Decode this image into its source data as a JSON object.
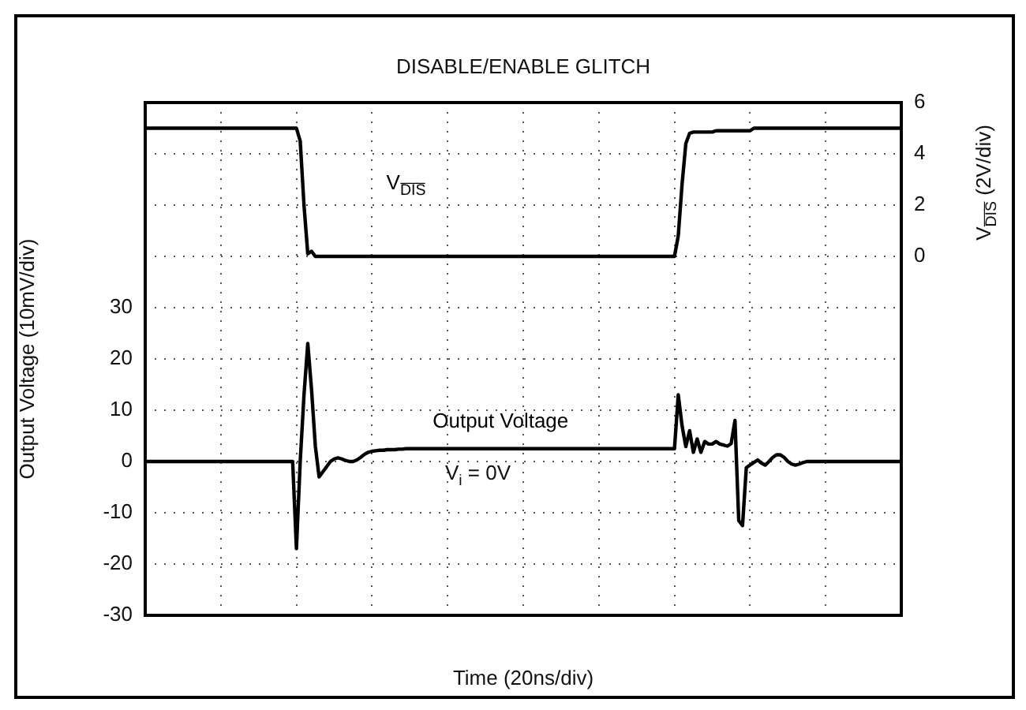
{
  "chart_data": {
    "type": "line",
    "title": "DISABLE/ENABLE GLITCH",
    "xlabel": "Time (20ns/div)",
    "ylabel": "Output Voltage (10mV/div)",
    "y2label": "V$_{D̅I̅S̅}$ (2V/div)",
    "annotations": [
      "V$_{i}$ = 0V"
    ],
    "categories": [
      null,
      null,
      null,
      null,
      null,
      null,
      null,
      null,
      null,
      null,
      null,
      null,
      null,
      null,
      null,
      null,
      null,
      null,
      null,
      null,
      null,
      null,
      null,
      null,
      null,
      null,
      null,
      null,
      null,
      null,
      null,
      null,
      null,
      null,
      null,
      null,
      null,
      null,
      null,
      null,
      null,
      null,
      null,
      null,
      null,
      null,
      null,
      null,
      null,
      null,
      null,
      null,
      null,
      null,
      null,
      null,
      null,
      null,
      null,
      null,
      null,
      null,
      null,
      null,
      null,
      null,
      null,
      null,
      null,
      null,
      null,
      null,
      null,
      null,
      null,
      null,
      null,
      null,
      null,
      null,
      null,
      null,
      null,
      null,
      null,
      null,
      null,
      null,
      null,
      null,
      null,
      null,
      null,
      null,
      null,
      null,
      null,
      null,
      null,
      null,
      null,
      null,
      null,
      null,
      null,
      null,
      null,
      null,
      null,
      null,
      null,
      null,
      null,
      null,
      null,
      null,
      null,
      null,
      null,
      null,
      null,
      null,
      null,
      null,
      null,
      null,
      null,
      null,
      null,
      null,
      null,
      null,
      null,
      null,
      null,
      null,
      null,
      null,
      null,
      null,
      null,
      null,
      null,
      null,
      null,
      null,
      null,
      null,
      null,
      null,
      null,
      null,
      null,
      null,
      null,
      null,
      null,
      null,
      null,
      null,
      null,
      null,
      null,
      null,
      null,
      null,
      null,
      null,
      null,
      null,
      null,
      null,
      null,
      null,
      null,
      null,
      null,
      null,
      null,
      null,
      null,
      null,
      null,
      null,
      null,
      null,
      null,
      null,
      null,
      null,
      null,
      null,
      null,
      null,
      null,
      null,
      null,
      null,
      null,
      null,
      null
    ],
    "series": [
      {
        "name": "V$_{D̅I̅S̅}$",
        "color": "#000000",
        "axis": "y2",
        "values": [
          5,
          5,
          5,
          5,
          5,
          5,
          5,
          5,
          5,
          5,
          5,
          5,
          5,
          5,
          5,
          5,
          5,
          5,
          5,
          5,
          5,
          5,
          5,
          5,
          5,
          5,
          5,
          5,
          5,
          5,
          5,
          5,
          5,
          5,
          5,
          5,
          5,
          5,
          5,
          5,
          5,
          4.5,
          2,
          0.1,
          0.2,
          0,
          0,
          0,
          0,
          0,
          0,
          0,
          0,
          0,
          0,
          0,
          0,
          0,
          0,
          0,
          0,
          0,
          0,
          0,
          0,
          0,
          0,
          0,
          0,
          0,
          0,
          0,
          0,
          0,
          0,
          0,
          0,
          0,
          0,
          0,
          0,
          0,
          0,
          0,
          0,
          0,
          0,
          0,
          0,
          0,
          0,
          0,
          0,
          0,
          0,
          0,
          0,
          0,
          0,
          0,
          0,
          0,
          0,
          0,
          0,
          0,
          0,
          0,
          0,
          0,
          0,
          0,
          0,
          0,
          0,
          0,
          0,
          0,
          0,
          0,
          0,
          0,
          0,
          0,
          0,
          0,
          0,
          0,
          0,
          0,
          0,
          0,
          0,
          0,
          0,
          0,
          0,
          0,
          0,
          0,
          0,
          0.8,
          2.8,
          4.4,
          4.8,
          4.85,
          4.85,
          4.85,
          4.85,
          4.85,
          4.85,
          4.9,
          4.9,
          4.9,
          4.9,
          4.9,
          4.9,
          4.9,
          4.9,
          4.9,
          4.9,
          5,
          5,
          5,
          5,
          5,
          5,
          5,
          5,
          5,
          5,
          5,
          5,
          5,
          5,
          5,
          5,
          5,
          5,
          5,
          5,
          5,
          5,
          5,
          5,
          5,
          5,
          5,
          5,
          5,
          5,
          5,
          5,
          5,
          5,
          5,
          5,
          5,
          5,
          5,
          5
        ]
      },
      {
        "name": "Output Voltage",
        "color": "#000000",
        "values": [
          0,
          0,
          0,
          0,
          0,
          0,
          0,
          0,
          0,
          0,
          0,
          0,
          0,
          0,
          0,
          0,
          0,
          0,
          0,
          0,
          0,
          0,
          0,
          0,
          0,
          0,
          0,
          0,
          0,
          0,
          0,
          0,
          0,
          0,
          0,
          0,
          0,
          0,
          0,
          0,
          -17,
          0,
          13,
          23,
          14,
          3,
          -3,
          -2,
          -1,
          0,
          0.5,
          0.7,
          0.5,
          0.2,
          0,
          0,
          0.3,
          0.8,
          1.4,
          1.8,
          2,
          2.1,
          2.2,
          2.2,
          2.3,
          2.3,
          2.3,
          2.4,
          2.4,
          2.5,
          2.5,
          2.5,
          2.5,
          2.5,
          2.5,
          2.5,
          2.5,
          2.5,
          2.5,
          2.5,
          2.5,
          2.5,
          2.5,
          2.5,
          2.5,
          2.5,
          2.5,
          2.5,
          2.5,
          2.5,
          2.5,
          2.5,
          2.5,
          2.5,
          2.5,
          2.5,
          2.5,
          2.5,
          2.5,
          2.5,
          2.5,
          2.5,
          2.5,
          2.5,
          2.5,
          2.5,
          2.5,
          2.5,
          2.5,
          2.5,
          2.5,
          2.5,
          2.5,
          2.5,
          2.5,
          2.5,
          2.5,
          2.5,
          2.5,
          2.5,
          2.5,
          2.5,
          2.5,
          2.5,
          2.5,
          2.5,
          2.5,
          2.5,
          2.5,
          2.5,
          2.5,
          2.5,
          2.5,
          2.5,
          2.5,
          2.5,
          2.5,
          2.5,
          2.5,
          2.5,
          2.5,
          13,
          7,
          2.9,
          6,
          1.8,
          4.4,
          1.8,
          3.9,
          3.4,
          3.4,
          3.9,
          3.4,
          3.2,
          3,
          3.5,
          8,
          -11.5,
          -12.5,
          -1.2,
          -0.7,
          -0.2,
          0.3,
          -0.3,
          -0.7,
          0,
          0.8,
          1.3,
          1.3,
          0.8,
          0,
          -0.5,
          -0.7,
          -0.5,
          -0.2,
          0,
          0,
          0,
          0,
          0,
          0,
          0,
          0,
          0,
          0,
          0,
          0,
          0,
          0,
          0,
          0,
          0,
          0,
          0,
          0,
          0,
          0,
          0,
          0,
          0,
          0
        ]
      }
    ],
    "ylim": [
      -30,
      70
    ],
    "yticks": [
      -30,
      -20,
      -10,
      0,
      10,
      20,
      30,
      {
        "value": 40,
        "label": null
      },
      {
        "value": 50,
        "label": null
      },
      {
        "value": 60,
        "label": null
      },
      {
        "value": 70,
        "label": null
      }
    ],
    "y2lim": [
      -14,
      6
    ],
    "y2ticks": [
      0,
      2,
      4,
      6
    ],
    "grid": true,
    "legend": false,
    "tick_labels": "y",
    "marker": "none",
    "line_style": "solid"
  }
}
